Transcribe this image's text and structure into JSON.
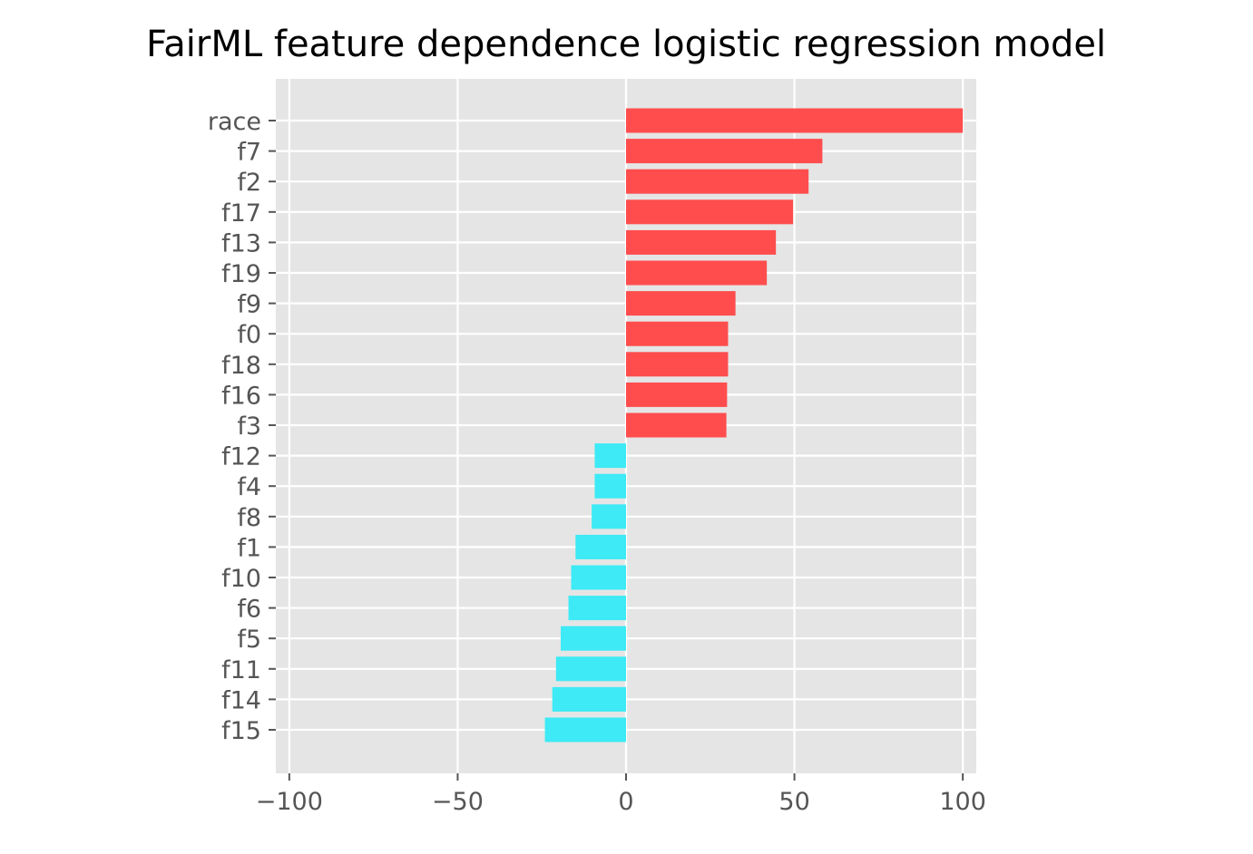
{
  "chart_data": {
    "type": "bar",
    "orientation": "horizontal",
    "title": "FairML feature dependence logistic regression model",
    "xlabel": "",
    "ylabel": "",
    "xlim": [
      -104,
      104
    ],
    "xticks": [
      -100,
      -50,
      0,
      50,
      100
    ],
    "xtick_labels": [
      "−100",
      "−50",
      "0",
      "50",
      "100"
    ],
    "grid": true,
    "categories": [
      "race",
      "f7",
      "f2",
      "f17",
      "f13",
      "f19",
      "f9",
      "f0",
      "f18",
      "f16",
      "f3",
      "f12",
      "f4",
      "f8",
      "f1",
      "f10",
      "f6",
      "f5",
      "f11",
      "f14",
      "f15"
    ],
    "values": [
      100,
      58.3,
      54.2,
      49.6,
      44.5,
      41.8,
      32.5,
      30.3,
      30.3,
      30.0,
      29.8,
      -9.3,
      -9.3,
      -10.2,
      -15.0,
      -16.3,
      -17.1,
      -19.4,
      -20.8,
      -21.9,
      -24.1
    ],
    "colors": {
      "positive": "#ff4d4d",
      "negative": "#3deaf5",
      "background": "#e5e5e5",
      "grid": "#ffffff",
      "tick_text": "#555555",
      "title_text": "#000000"
    }
  }
}
